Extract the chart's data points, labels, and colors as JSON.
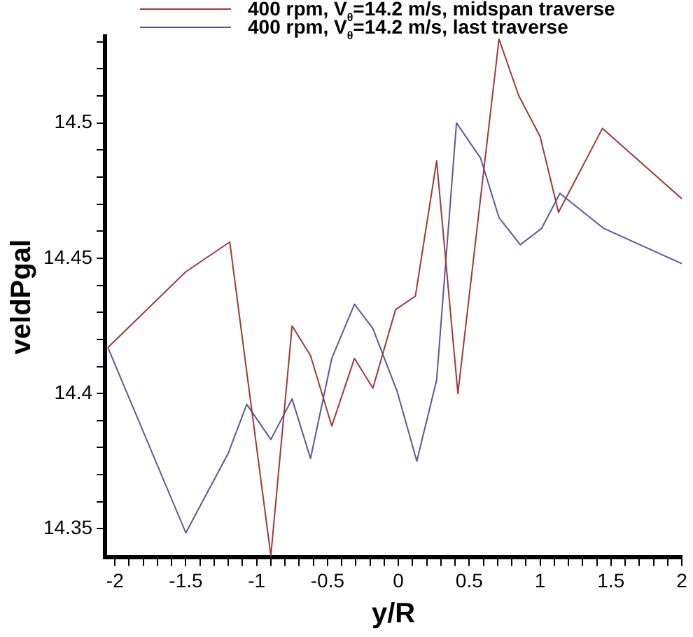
{
  "chart_data": {
    "type": "line",
    "xlabel": "y/R",
    "ylabel": "veldPgal",
    "legend": "top",
    "grid": false,
    "marker": "none",
    "line_style": "solid",
    "xlim": [
      -2.07,
      2
    ],
    "ylim": [
      14.3394,
      14.532
    ],
    "xticks": [
      -2,
      {
        "value": -1.9,
        "label": null
      },
      {
        "value": -1.8,
        "label": null
      },
      {
        "value": -1.7,
        "label": null
      },
      {
        "value": -1.6,
        "label": null
      },
      -1.5,
      {
        "value": -1.4,
        "label": null
      },
      {
        "value": -1.3,
        "label": null
      },
      {
        "value": -1.2,
        "label": null
      },
      {
        "value": -1.1,
        "label": null
      },
      -1,
      {
        "value": -0.9,
        "label": null
      },
      {
        "value": -0.8,
        "label": null
      },
      {
        "value": -0.7,
        "label": null
      },
      {
        "value": -0.6,
        "label": null
      },
      -0.5,
      {
        "value": -0.4,
        "label": null
      },
      {
        "value": -0.3,
        "label": null
      },
      {
        "value": -0.2,
        "label": null
      },
      {
        "value": -0.1,
        "label": null
      },
      0,
      {
        "value": 0.1,
        "label": null
      },
      {
        "value": 0.2,
        "label": null
      },
      {
        "value": 0.3,
        "label": null
      },
      {
        "value": 0.4,
        "label": null
      },
      0.5,
      {
        "value": 0.6,
        "label": null
      },
      {
        "value": 0.7,
        "label": null
      },
      {
        "value": 0.8,
        "label": null
      },
      {
        "value": 0.9,
        "label": null
      },
      1,
      {
        "value": 1.1,
        "label": null
      },
      {
        "value": 1.2,
        "label": null
      },
      {
        "value": 1.3,
        "label": null
      },
      {
        "value": 1.4,
        "label": null
      },
      1.5,
      {
        "value": 1.6,
        "label": null
      },
      {
        "value": 1.7,
        "label": null
      },
      {
        "value": 1.8,
        "label": null
      },
      {
        "value": 1.9,
        "label": null
      },
      2
    ],
    "yticks": [
      14.35,
      {
        "value": 14.36,
        "label": null
      },
      {
        "value": 14.37,
        "label": null
      },
      {
        "value": 14.38,
        "label": null
      },
      {
        "value": 14.39,
        "label": null
      },
      14.4,
      {
        "value": 14.41,
        "label": null
      },
      {
        "value": 14.42,
        "label": null
      },
      {
        "value": 14.43,
        "label": null
      },
      {
        "value": 14.44,
        "label": null
      },
      14.45,
      {
        "value": 14.46,
        "label": null
      },
      {
        "value": 14.47,
        "label": null
      },
      {
        "value": 14.48,
        "label": null
      },
      {
        "value": 14.49,
        "label": null
      },
      14.5,
      {
        "value": 14.51,
        "label": null
      },
      {
        "value": 14.52,
        "label": null
      },
      {
        "value": 14.53,
        "label": null
      }
    ],
    "series": [
      {
        "name": "400 rpm, V$_{θ}$=14.2 m/s, midspan traverse",
        "color": "#a03838",
        "x": [
          -2.05,
          -1.5,
          -1.19,
          -0.9,
          -0.75,
          -0.62,
          -0.47,
          -0.31,
          -0.18,
          -0.02,
          0.12,
          0.27,
          0.42,
          0.71,
          0.85,
          1.0,
          1.13,
          1.44,
          2.0
        ],
        "values": [
          14.417,
          14.445,
          14.456,
          14.34,
          14.425,
          14.414,
          14.388,
          14.413,
          14.402,
          14.431,
          14.436,
          14.486,
          14.4,
          14.531,
          14.51,
          14.495,
          14.467,
          14.498,
          14.472
        ]
      },
      {
        "name": "400 rpm, V$_{θ}$=14.2 m/s, last traverse",
        "color": "#5858a0",
        "x": [
          -2.05,
          -1.5,
          -1.2,
          -1.07,
          -0.9,
          -0.75,
          -0.62,
          -0.47,
          -0.31,
          -0.18,
          -0.01,
          0.13,
          0.27,
          0.41,
          0.58,
          0.71,
          0.86,
          1.01,
          1.14,
          1.45,
          2.0
        ],
        "values": [
          14.417,
          14.3485,
          14.378,
          14.396,
          14.383,
          14.398,
          14.376,
          14.413,
          14.433,
          14.424,
          14.401,
          14.375,
          14.405,
          14.5,
          14.487,
          14.465,
          14.455,
          14.461,
          14.474,
          14.461,
          14.448
        ]
      }
    ]
  }
}
